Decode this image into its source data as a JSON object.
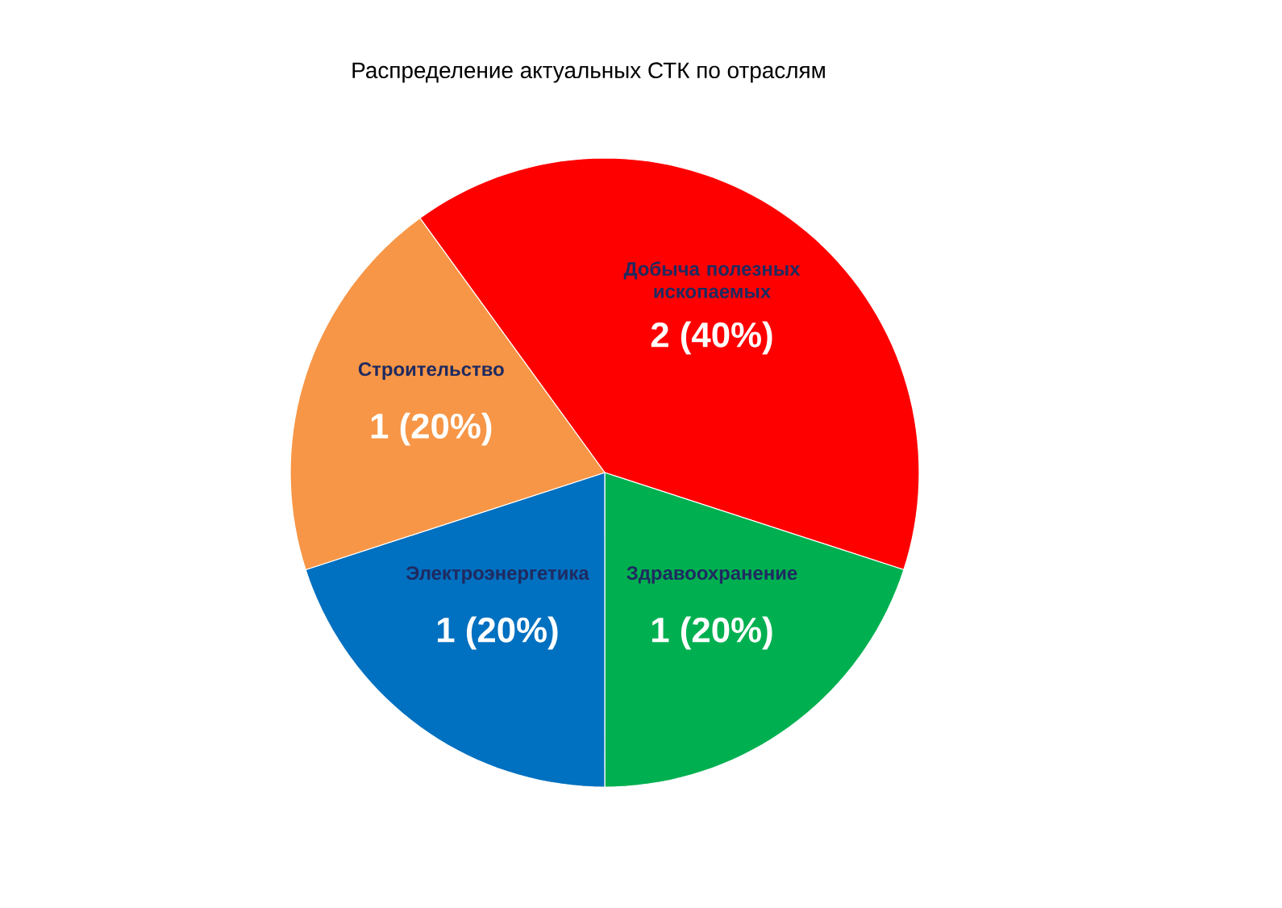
{
  "chart_data": {
    "type": "pie",
    "title": "Распределение актуальных СТК по отраслям",
    "categories": [
      "Добыча полезных ископаемых",
      "Здравоохранение",
      "Электроэнергетика",
      "Строительство"
    ],
    "values": [
      2,
      1,
      1,
      1
    ],
    "colors": [
      "#ff0000",
      "#00b050",
      "#0070c0",
      "#f79646"
    ],
    "value_labels": [
      "2 (40%)",
      "1 (20%)",
      "1 (20%)",
      "1 (20%)"
    ],
    "legend": false
  }
}
